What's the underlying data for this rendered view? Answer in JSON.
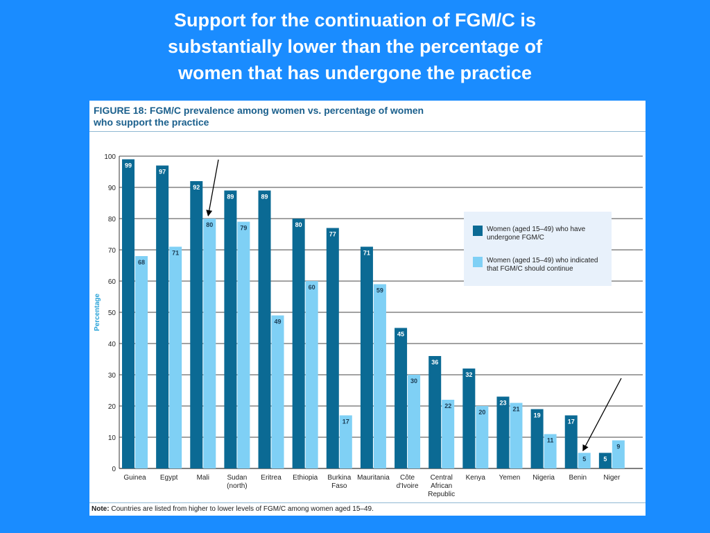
{
  "slide": {
    "title_lines": [
      "Support for the continuation of FGM/C is",
      "substantially lower than the percentage of",
      "women that has undergone the practice"
    ]
  },
  "figure": {
    "heading_lines": [
      "FIGURE 18: FGM/C prevalence among women vs. percentage of women",
      "who support the practice"
    ],
    "note_label": "Note:",
    "note_text": " Countries are listed from higher to lower levels of FGM/C among women aged 15–49."
  },
  "colors": {
    "background": "#1a8cff",
    "dark_series": "#0b6a94",
    "light_series": "#7fd0f5",
    "ylabel": "#29a3d8"
  },
  "chart_data": {
    "type": "bar",
    "title": "FIGURE 18: FGM/C prevalence among women vs. percentage of women who support the practice",
    "xlabel": "",
    "ylabel": "Percentage",
    "ylim": [
      0,
      100
    ],
    "yticks": [
      0,
      10,
      20,
      30,
      40,
      50,
      60,
      70,
      80,
      90,
      100
    ],
    "grid": true,
    "legend_position": "right",
    "categories": [
      [
        "Guinea"
      ],
      [
        "Egypt"
      ],
      [
        "Mali"
      ],
      [
        "Sudan",
        "(north)"
      ],
      [
        "Eritrea"
      ],
      [
        "Ethiopia"
      ],
      [
        "Burkina",
        "Faso"
      ],
      [
        "Mauritania"
      ],
      [
        "Côte",
        "d'Ivoire"
      ],
      [
        "Central",
        "African",
        "Republic"
      ],
      [
        "Kenya"
      ],
      [
        "Yemen"
      ],
      [
        "Nigeria"
      ],
      [
        "Benin"
      ],
      [
        "Niger"
      ]
    ],
    "series": [
      {
        "name": "Women (aged 15–49) who have undergone FGM/C",
        "legend_lines": [
          "Women (aged 15–49) who have",
          "undergone FGM/C"
        ],
        "values": [
          99,
          97,
          92,
          89,
          89,
          80,
          77,
          71,
          45,
          36,
          32,
          23,
          19,
          17,
          5
        ]
      },
      {
        "name": "Women (aged 15–49) who indicated that FGM/C should continue",
        "legend_lines": [
          "Women (aged 15–49) who indicated",
          "that FGM/C should continue"
        ],
        "values": [
          68,
          71,
          80,
          79,
          49,
          60,
          17,
          59,
          30,
          22,
          20,
          21,
          11,
          5,
          9
        ]
      }
    ],
    "annotations": [
      {
        "type": "arrow",
        "points_to": "Mali: women who indicated FGM/C should continue (80)"
      },
      {
        "type": "arrow",
        "points_to": "Benin: women who indicated FGM/C should continue (5)"
      }
    ]
  }
}
